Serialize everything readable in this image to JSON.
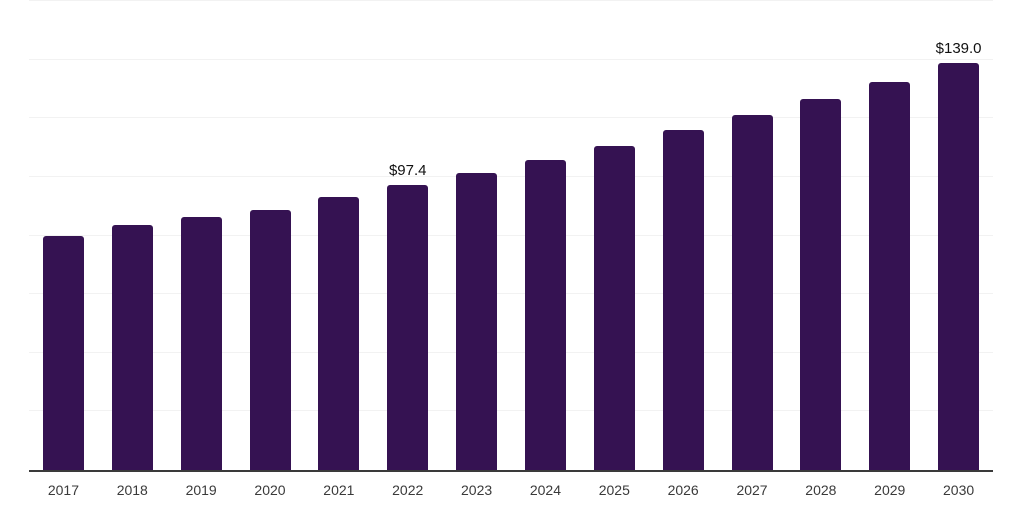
{
  "chart_data": {
    "type": "bar",
    "categories": [
      "2017",
      "2018",
      "2019",
      "2020",
      "2021",
      "2022",
      "2023",
      "2024",
      "2025",
      "2026",
      "2027",
      "2028",
      "2029",
      "2030"
    ],
    "values": [
      79.9,
      83.5,
      86.2,
      88.8,
      93.2,
      97.4,
      101.3,
      105.7,
      110.4,
      115.9,
      121.0,
      126.6,
      132.5,
      139.0
    ],
    "data_labels": {
      "2022": "$97.4",
      "2030": "$139.0"
    },
    "ylim": [
      0,
      160
    ],
    "gridline_step": 20,
    "grid": true,
    "legend": "none",
    "y_axis_labels_visible": false,
    "colors": {
      "bar": "#351252",
      "axis_line": "#3a3a3a",
      "gridline": "#f2f2f2",
      "value_label": "#111111",
      "tick_label": "#3a3a3a",
      "background": "#ffffff"
    }
  }
}
